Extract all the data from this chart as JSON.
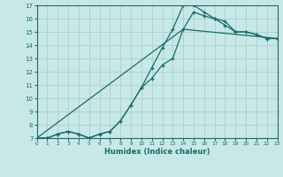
{
  "xlabel": "Humidex (Indice chaleur)",
  "xlim": [
    0,
    23
  ],
  "ylim": [
    7,
    17
  ],
  "xticks": [
    0,
    1,
    2,
    3,
    4,
    5,
    6,
    7,
    8,
    9,
    10,
    11,
    12,
    13,
    14,
    15,
    16,
    17,
    18,
    19,
    20,
    21,
    22,
    23
  ],
  "yticks": [
    7,
    8,
    9,
    10,
    11,
    12,
    13,
    14,
    15,
    16,
    17
  ],
  "bg_color": "#c8e8e8",
  "line_color": "#1a6b6b",
  "grid_color": "#a8d0d0",
  "line1_x": [
    0,
    1,
    2,
    3,
    4,
    5,
    6,
    7,
    8,
    9,
    10,
    11,
    12,
    13,
    14,
    15,
    16,
    17,
    18,
    19,
    20,
    21,
    22,
    23
  ],
  "line1_y": [
    7.0,
    7.0,
    7.3,
    7.5,
    7.3,
    7.0,
    7.3,
    7.5,
    8.3,
    9.5,
    10.8,
    12.3,
    13.8,
    15.2,
    17.0,
    17.0,
    16.5,
    16.0,
    15.8,
    15.0,
    15.0,
    14.8,
    14.5,
    14.5
  ],
  "line2_x": [
    0,
    1,
    2,
    3,
    4,
    5,
    6,
    7,
    8,
    9,
    10,
    11,
    12,
    13,
    14,
    15,
    16,
    17,
    18,
    19,
    20,
    21,
    22,
    23
  ],
  "line2_y": [
    7.0,
    7.0,
    7.3,
    7.5,
    7.3,
    7.0,
    7.3,
    7.5,
    8.3,
    9.5,
    10.8,
    11.5,
    12.5,
    13.0,
    15.2,
    16.5,
    16.2,
    16.0,
    15.5,
    15.0,
    15.0,
    14.8,
    14.5,
    14.5
  ],
  "line3_x": [
    0,
    14,
    23
  ],
  "line3_y": [
    7.0,
    15.2,
    14.5
  ]
}
